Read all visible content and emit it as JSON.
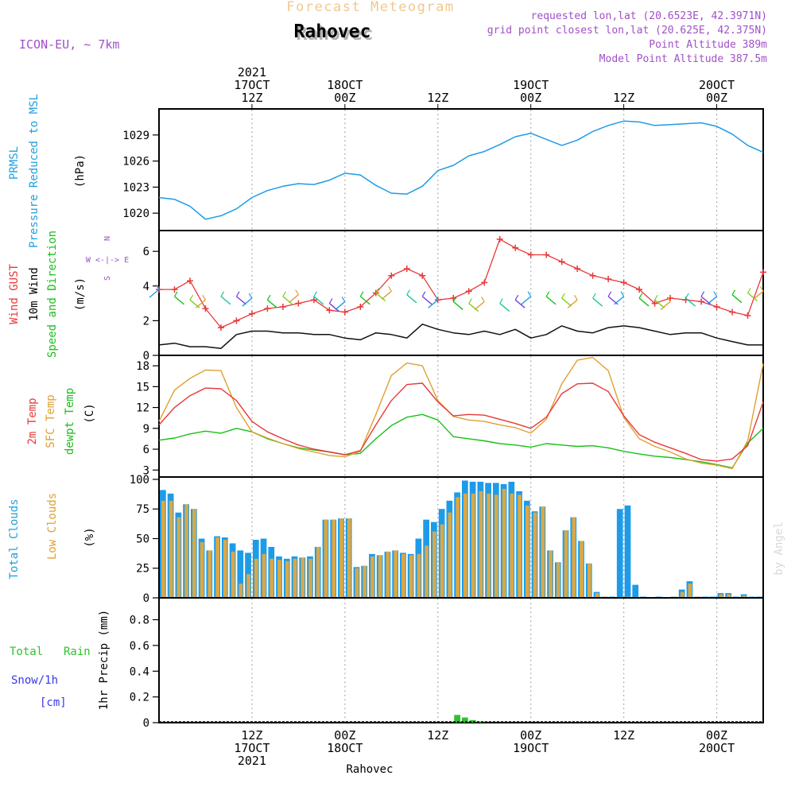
{
  "header": {
    "model": "ICON-EU, ~ 7km",
    "product": "Forecast Meteogram",
    "location": "Rahovec",
    "requested": "requested lon,lat (20.6523E, 42.3971N)",
    "gridpoint": "grid point closest lon,lat (20.625E, 42.375N)",
    "point_altitude": "Point Altitude 389m",
    "model_altitude": "Model Point Altitude 387.5m"
  },
  "footer": {
    "location": "Rahovec",
    "credit": "by Angel"
  },
  "colors": {
    "pressure": "#1e9be8",
    "gust": "#e8383a",
    "wind": "#111111",
    "t2m": "#e8383a",
    "tsfc": "#e0a030",
    "dewpt": "#18c018",
    "total_clouds": "#1e9be8",
    "low_clouds": "#d8a848",
    "rain": "#30c030",
    "snow": "#3838e8",
    "frame": "#000000",
    "grid": "#9a9a9a",
    "magenta": "#a050c8",
    "cyan": "#1ea0e0",
    "orange_label": "#e0a030",
    "green_label": "#18c018"
  },
  "time_axis": {
    "top_labels": [
      {
        "hour": 12,
        "lines": [
          "2021",
          "17OCT",
          "12Z"
        ]
      },
      {
        "hour": 24,
        "lines": [
          "18OCT",
          "00Z"
        ]
      },
      {
        "hour": 36,
        "lines": [
          "12Z"
        ]
      },
      {
        "hour": 48,
        "lines": [
          "19OCT",
          "00Z"
        ]
      },
      {
        "hour": 60,
        "lines": [
          "12Z"
        ]
      },
      {
        "hour": 72,
        "lines": [
          "20OCT",
          "00Z"
        ]
      }
    ],
    "bottom_labels": [
      {
        "hour": 12,
        "lines": [
          "12Z",
          "17OCT",
          "2021"
        ]
      },
      {
        "hour": 24,
        "lines": [
          "00Z",
          "18OCT"
        ]
      },
      {
        "hour": 36,
        "lines": [
          "12Z"
        ]
      },
      {
        "hour": 48,
        "lines": [
          "00Z",
          "19OCT"
        ]
      },
      {
        "hour": 60,
        "lines": [
          "12Z"
        ]
      },
      {
        "hour": 72,
        "lines": [
          "00Z",
          "20OCT"
        ]
      }
    ]
  },
  "panels": {
    "pressure": {
      "labels": [
        "PRMSL",
        "Pressure Reduced to MSL"
      ],
      "unit": "(hPa)",
      "ticks": [
        "1020",
        "1023",
        "1026",
        "1029"
      ]
    },
    "wind": {
      "labels": [
        "Wind GUST",
        "10m Wind",
        "Speed and Direction"
      ],
      "unit": "(m/s)",
      "compass": [
        "N",
        "W <-|-> E",
        "S"
      ],
      "ticks": [
        "0",
        "2",
        "4",
        "6"
      ]
    },
    "temp": {
      "labels": [
        "2m Temp",
        "SFC Temp",
        "dewpt Temp"
      ],
      "unit": "(C)",
      "ticks": [
        "3",
        "6",
        "9",
        "12",
        "15",
        "18"
      ]
    },
    "clouds": {
      "labels": [
        "Total Clouds",
        "Low Clouds"
      ],
      "unit": "(%)",
      "ticks": [
        "0",
        "25",
        "50",
        "75",
        "100"
      ]
    },
    "precip": {
      "labels": [
        "Total Rain",
        "Snow/1h",
        "[cm]"
      ],
      "unit": "1hr Precip (mm)",
      "ticks": [
        "0",
        "0.2",
        "0.4",
        "0.6",
        "0.8"
      ]
    }
  },
  "chart_data": [
    {
      "type": "line",
      "name": "PRMSL",
      "x_start_hour": 0,
      "x_end_hour": 78,
      "ylim": [
        1018,
        1032
      ],
      "x": [
        0,
        2,
        4,
        6,
        8,
        10,
        12,
        14,
        16,
        18,
        20,
        22,
        24,
        26,
        28,
        30,
        32,
        34,
        36,
        38,
        40,
        42,
        44,
        46,
        48,
        50,
        52,
        54,
        56,
        58,
        60,
        62,
        64,
        66,
        68,
        70,
        72,
        74,
        76,
        78
      ],
      "values": [
        1021.8,
        1021.6,
        1020.8,
        1019.3,
        1019.7,
        1020.5,
        1021.8,
        1022.6,
        1023.1,
        1023.4,
        1023.3,
        1023.8,
        1024.6,
        1024.4,
        1023.2,
        1022.3,
        1022.2,
        1023.1,
        1024.9,
        1025.5,
        1026.6,
        1027.1,
        1027.9,
        1028.8,
        1029.2,
        1028.5,
        1027.8,
        1028.4,
        1029.4,
        1030.1,
        1030.6,
        1030.5,
        1030.1,
        1030.2,
        1030.3,
        1030.4,
        1030.0,
        1029.1,
        1027.8,
        1027.0
      ]
    },
    {
      "type": "line",
      "name": "Wind",
      "x_start_hour": 0,
      "x_end_hour": 78,
      "ylim": [
        0,
        7.2
      ],
      "x": [
        0,
        2,
        4,
        6,
        8,
        10,
        12,
        14,
        16,
        18,
        20,
        22,
        24,
        26,
        28,
        30,
        32,
        34,
        36,
        38,
        40,
        42,
        44,
        46,
        48,
        50,
        52,
        54,
        56,
        58,
        60,
        62,
        64,
        66,
        68,
        70,
        72,
        74,
        76,
        78
      ],
      "values": [
        0.6,
        0.7,
        0.5,
        0.5,
        0.4,
        1.2,
        1.4,
        1.4,
        1.3,
        1.3,
        1.2,
        1.2,
        1.0,
        0.9,
        1.3,
        1.2,
        1.0,
        1.8,
        1.5,
        1.3,
        1.2,
        1.4,
        1.2,
        1.5,
        1.0,
        1.2,
        1.7,
        1.4,
        1.3,
        1.6,
        1.7,
        1.6,
        1.4,
        1.2,
        1.3,
        1.3,
        1.0,
        0.8,
        0.6,
        0.6
      ],
      "gust": [
        3.8,
        3.8,
        4.3,
        2.7,
        1.6,
        2.0,
        2.4,
        2.7,
        2.8,
        3.0,
        3.2,
        2.6,
        2.5,
        2.8,
        3.6,
        4.6,
        5.0,
        4.6,
        3.2,
        3.3,
        3.7,
        4.2,
        6.7,
        6.2,
        5.8,
        5.8,
        5.4,
        5.0,
        4.6,
        4.4,
        4.2,
        3.8,
        3.0,
        3.3,
        3.2,
        3.1,
        2.8,
        2.5,
        2.3,
        4.8
      ],
      "barbs_y": [
        3.8,
        3.4,
        3.2,
        3.2,
        3.4,
        3.4,
        3.3,
        3.2,
        3.4,
        3.5,
        3.4,
        3.0,
        3.1,
        3.4,
        3.6,
        3.7,
        3.5,
        3.4,
        3.2,
        3.1,
        3.0,
        3.1,
        3.0,
        3.2,
        3.4,
        3.4,
        3.3,
        3.2,
        3.3,
        3.4,
        3.4,
        3.3,
        3.2,
        3.1,
        3.3,
        3.4,
        3.4,
        3.5,
        3.6,
        3.7
      ]
    },
    {
      "type": "line",
      "name": "Temperature",
      "x_start_hour": 0,
      "x_end_hour": 78,
      "ylim": [
        2,
        19.5
      ],
      "x": [
        0,
        2,
        4,
        6,
        8,
        10,
        12,
        14,
        16,
        18,
        20,
        22,
        24,
        26,
        28,
        30,
        32,
        34,
        36,
        38,
        40,
        42,
        44,
        46,
        48,
        50,
        52,
        54,
        56,
        58,
        60,
        62,
        64,
        66,
        68,
        70,
        72,
        74,
        76,
        78
      ],
      "t2m": [
        9.5,
        12,
        13.7,
        14.8,
        14.7,
        13,
        10,
        8.5,
        7.5,
        6.6,
        6,
        5.6,
        5.2,
        5.8,
        9.5,
        13,
        15.3,
        15.5,
        12.8,
        10.8,
        11,
        10.9,
        10.3,
        9.7,
        9,
        10.6,
        14,
        15.4,
        15.5,
        14.3,
        10.8,
        8.1,
        7,
        6.2,
        5.4,
        4.5,
        4.3,
        4.6,
        6.5,
        12.8
      ],
      "tsfc": [
        10,
        14.5,
        16.2,
        17.4,
        17.3,
        12,
        8.5,
        7.6,
        6.8,
        6.1,
        5.6,
        5.1,
        4.9,
        5.7,
        11,
        16.6,
        18.4,
        18,
        13,
        10.7,
        10.2,
        10,
        9.5,
        9.1,
        8.3,
        10.3,
        15.4,
        18.8,
        19.2,
        17.3,
        10.6,
        7.5,
        6.4,
        5.6,
        4.6,
        4,
        3.7,
        3.2,
        7.2,
        18.3
      ],
      "dewpt": [
        7.3,
        7.6,
        8.2,
        8.6,
        8.3,
        9,
        8.5,
        7.5,
        6.8,
        6.2,
        5.9,
        5.6,
        5.2,
        5.4,
        7.5,
        9.4,
        10.6,
        11.0,
        10.2,
        7.8,
        7.5,
        7.2,
        6.8,
        6.6,
        6.3,
        6.8,
        6.6,
        6.4,
        6.5,
        6.2,
        5.7,
        5.3,
        5.0,
        4.8,
        4.5,
        4.2,
        3.8,
        3.3,
        6.9,
        9.0
      ]
    },
    {
      "type": "bar",
      "name": "Clouds",
      "x_start_hour": 0,
      "x_end_hour": 78,
      "ylim": [
        0,
        102
      ],
      "x": [
        0,
        1,
        2,
        3,
        4,
        5,
        6,
        7,
        8,
        9,
        10,
        11,
        12,
        13,
        14,
        15,
        16,
        17,
        18,
        19,
        20,
        21,
        22,
        23,
        24,
        25,
        26,
        27,
        28,
        29,
        30,
        31,
        32,
        33,
        34,
        35,
        36,
        37,
        38,
        39,
        40,
        41,
        42,
        43,
        44,
        45,
        46,
        47,
        48,
        49,
        50,
        51,
        52,
        53,
        54,
        55,
        56,
        57,
        58,
        59,
        60,
        61,
        62,
        63,
        64,
        65,
        66,
        67,
        68,
        69,
        70,
        71,
        72,
        73,
        74,
        75,
        76,
        77
      ],
      "total": [
        91,
        88,
        72,
        79,
        75,
        50,
        40,
        52,
        51,
        46,
        40,
        38,
        49,
        50,
        43,
        35,
        33,
        35,
        34,
        35,
        43,
        66,
        66,
        67,
        67,
        26,
        27,
        37,
        36,
        39,
        40,
        38,
        37,
        50,
        66,
        64,
        75,
        82,
        89,
        99,
        98,
        98,
        97,
        97,
        96,
        98,
        90,
        82,
        73,
        77,
        40,
        30,
        57,
        68,
        48,
        29,
        5,
        1,
        1,
        75,
        78,
        11,
        1,
        0,
        1,
        0,
        1,
        7,
        14,
        1,
        1,
        1,
        4,
        4,
        1,
        3,
        1,
        1
      ],
      "low": [
        82,
        82,
        68,
        79,
        75,
        47,
        40,
        51,
        49,
        39,
        12,
        20,
        33,
        37,
        33,
        32,
        31,
        33,
        34,
        33,
        43,
        66,
        66,
        67,
        67,
        25,
        27,
        35,
        36,
        39,
        40,
        37,
        36,
        37,
        44,
        56,
        62,
        72,
        85,
        88,
        88,
        90,
        88,
        87,
        92,
        88,
        87,
        78,
        72,
        77,
        40,
        30,
        57,
        68,
        48,
        29,
        4,
        1,
        0,
        0,
        1,
        0,
        0,
        0,
        0,
        0,
        1,
        5,
        12,
        1,
        0,
        0,
        3,
        3,
        0,
        2,
        0,
        0
      ]
    },
    {
      "type": "bar",
      "name": "Precip",
      "x_start_hour": 0,
      "x_end_hour": 78,
      "ylim": [
        0,
        0.97
      ],
      "x": [
        38,
        39,
        40,
        41
      ],
      "rain": [
        0.06,
        0.04,
        0.02,
        0.01
      ],
      "snow": [
        0,
        0,
        0,
        0
      ]
    }
  ]
}
